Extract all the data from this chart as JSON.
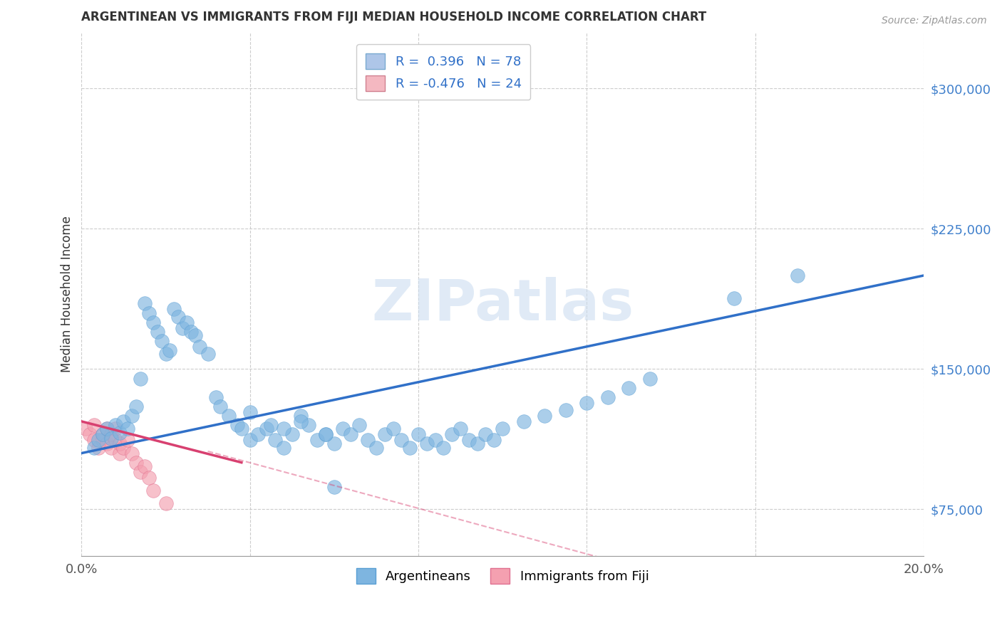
{
  "title": "ARGENTINEAN VS IMMIGRANTS FROM FIJI MEDIAN HOUSEHOLD INCOME CORRELATION CHART",
  "source": "Source: ZipAtlas.com",
  "ylabel": "Median Household Income",
  "yticks": [
    75000,
    150000,
    225000,
    300000
  ],
  "ytick_labels": [
    "$75,000",
    "$150,000",
    "$225,000",
    "$300,000"
  ],
  "watermark": "ZIPatlas",
  "legend_items": [
    {
      "label": "R =  0.396   N = 78",
      "color": "#aec6e8"
    },
    {
      "label": "R = -0.476   N = 24",
      "color": "#f4b8c1"
    }
  ],
  "legend_bottom": [
    "Argentineans",
    "Immigrants from Fiji"
  ],
  "argentina_color": "#7eb5e0",
  "fiji_color": "#f4a0b0",
  "argentina_edge": "#5a9fd4",
  "fiji_edge": "#e07090",
  "trend_argentina_color": "#3070c8",
  "trend_fiji_color": "#d84070",
  "background_color": "#ffffff",
  "grid_color": "#cccccc",
  "argentina_scatter_x": [
    0.003,
    0.004,
    0.005,
    0.006,
    0.007,
    0.008,
    0.009,
    0.01,
    0.011,
    0.012,
    0.013,
    0.014,
    0.015,
    0.016,
    0.017,
    0.018,
    0.019,
    0.02,
    0.021,
    0.022,
    0.023,
    0.024,
    0.025,
    0.026,
    0.027,
    0.028,
    0.03,
    0.032,
    0.033,
    0.035,
    0.037,
    0.038,
    0.04,
    0.042,
    0.044,
    0.046,
    0.048,
    0.05,
    0.052,
    0.054,
    0.056,
    0.058,
    0.06,
    0.062,
    0.064,
    0.066,
    0.068,
    0.07,
    0.072,
    0.074,
    0.076,
    0.078,
    0.08,
    0.082,
    0.084,
    0.086,
    0.088,
    0.09,
    0.092,
    0.094,
    0.096,
    0.098,
    0.1,
    0.105,
    0.11,
    0.115,
    0.12,
    0.125,
    0.13,
    0.135,
    0.04,
    0.045,
    0.048,
    0.052,
    0.058,
    0.155,
    0.17,
    0.06
  ],
  "argentina_scatter_y": [
    108000,
    112000,
    115000,
    118000,
    113000,
    120000,
    116000,
    122000,
    118000,
    125000,
    130000,
    145000,
    185000,
    180000,
    175000,
    170000,
    165000,
    158000,
    160000,
    182000,
    178000,
    172000,
    175000,
    170000,
    168000,
    162000,
    158000,
    135000,
    130000,
    125000,
    120000,
    118000,
    112000,
    115000,
    118000,
    112000,
    108000,
    115000,
    125000,
    120000,
    112000,
    115000,
    110000,
    118000,
    115000,
    120000,
    112000,
    108000,
    115000,
    118000,
    112000,
    108000,
    115000,
    110000,
    112000,
    108000,
    115000,
    118000,
    112000,
    110000,
    115000,
    112000,
    118000,
    122000,
    125000,
    128000,
    132000,
    135000,
    140000,
    145000,
    127000,
    120000,
    118000,
    122000,
    115000,
    188000,
    200000,
    87000
  ],
  "fiji_scatter_x": [
    0.001,
    0.002,
    0.003,
    0.003,
    0.004,
    0.005,
    0.005,
    0.006,
    0.006,
    0.007,
    0.007,
    0.008,
    0.008,
    0.009,
    0.009,
    0.01,
    0.011,
    0.012,
    0.013,
    0.014,
    0.015,
    0.016,
    0.017,
    0.02
  ],
  "fiji_scatter_y": [
    118000,
    115000,
    112000,
    120000,
    108000,
    115000,
    112000,
    118000,
    110000,
    115000,
    108000,
    112000,
    118000,
    105000,
    110000,
    108000,
    112000,
    105000,
    100000,
    95000,
    98000,
    92000,
    85000,
    78000
  ],
  "xlim": [
    0.0,
    0.2
  ],
  "ylim": [
    50000,
    330000
  ],
  "marker_size": 200,
  "trend_argentina_x0": 0.0,
  "trend_argentina_x1": 0.2,
  "trend_argentina_y0": 105000,
  "trend_argentina_y1": 200000,
  "trend_fiji_solid_x0": 0.0,
  "trend_fiji_solid_x1": 0.038,
  "trend_fiji_solid_y0": 122000,
  "trend_fiji_solid_y1": 100000,
  "trend_fiji_dashed_x0": 0.03,
  "trend_fiji_dashed_x1": 0.13,
  "trend_fiji_dashed_y0": 106000,
  "trend_fiji_dashed_y1": 45000,
  "xtick_positions": [
    0.0,
    0.04,
    0.08,
    0.12,
    0.16,
    0.2
  ],
  "xtick_labels": [
    "0.0%",
    "",
    "",
    "",
    "",
    "20.0%"
  ]
}
